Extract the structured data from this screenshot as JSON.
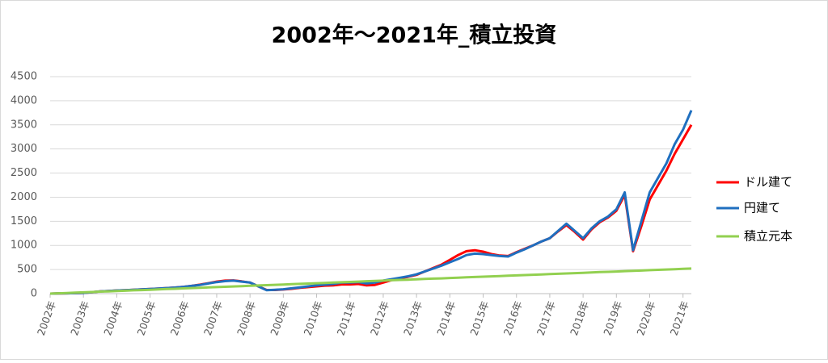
{
  "chart_data": {
    "type": "line",
    "title": "2002年～2021年_積立投資",
    "categories": [
      "2002年",
      null,
      null,
      null,
      "2003年",
      null,
      null,
      null,
      "2004年",
      null,
      null,
      null,
      "2005年",
      null,
      null,
      null,
      "2006年",
      null,
      null,
      null,
      "2007年",
      null,
      null,
      null,
      "2008年",
      null,
      null,
      null,
      "2009年",
      null,
      null,
      null,
      "2010年",
      null,
      null,
      null,
      "2011年",
      null,
      null,
      null,
      "2012年",
      null,
      null,
      null,
      "2013年",
      null,
      null,
      null,
      "2014年",
      null,
      null,
      null,
      "2015年",
      null,
      null,
      null,
      "2016年",
      null,
      null,
      null,
      "2017年",
      null,
      null,
      null,
      "2018年",
      null,
      null,
      null,
      "2019年",
      null,
      null,
      null,
      "2020年",
      null,
      null,
      null,
      "2021年",
      null
    ],
    "series": [
      {
        "name": "ドル建て",
        "color": "#ff0000",
        "values": [
          0,
          3,
          6,
          10,
          15,
          30,
          45,
          55,
          65,
          72,
          80,
          88,
          95,
          105,
          115,
          125,
          140,
          160,
          185,
          215,
          250,
          270,
          275,
          255,
          230,
          150,
          75,
          75,
          85,
          100,
          120,
          135,
          150,
          165,
          170,
          190,
          190,
          200,
          170,
          180,
          230,
          280,
          320,
          350,
          390,
          460,
          530,
          600,
          700,
          800,
          880,
          900,
          870,
          820,
          790,
          780,
          860,
          930,
          1000,
          1080,
          1150,
          1290,
          1420,
          1280,
          1120,
          1330,
          1480,
          1580,
          1720,
          2050,
          880,
          1400,
          1950,
          2250,
          2550,
          2900,
          3200,
          3500
        ]
      },
      {
        "name": "円建て",
        "color": "#1f6fbf",
        "values": [
          0,
          3,
          6,
          10,
          15,
          30,
          45,
          55,
          65,
          72,
          80,
          88,
          95,
          105,
          115,
          125,
          140,
          160,
          180,
          210,
          240,
          260,
          270,
          250,
          230,
          150,
          70,
          80,
          90,
          110,
          130,
          150,
          170,
          185,
          200,
          230,
          230,
          240,
          210,
          230,
          270,
          300,
          330,
          360,
          400,
          460,
          520,
          580,
          650,
          720,
          800,
          830,
          820,
          800,
          780,
          770,
          850,
          920,
          1000,
          1080,
          1150,
          1300,
          1450,
          1300,
          1150,
          1350,
          1500,
          1600,
          1750,
          2100,
          900,
          1500,
          2100,
          2400,
          2700,
          3100,
          3400,
          3800
        ]
      },
      {
        "name": "積立元本",
        "color": "#92d050",
        "values": [
          0,
          7,
          14,
          20,
          27,
          34,
          41,
          47,
          54,
          61,
          68,
          74,
          81,
          88,
          95,
          101,
          108,
          115,
          122,
          128,
          135,
          142,
          149,
          155,
          162,
          169,
          176,
          182,
          189,
          196,
          203,
          209,
          216,
          223,
          230,
          236,
          243,
          250,
          257,
          263,
          270,
          277,
          284,
          290,
          297,
          304,
          311,
          317,
          324,
          331,
          338,
          344,
          351,
          358,
          365,
          371,
          378,
          385,
          392,
          398,
          405,
          412,
          419,
          425,
          432,
          439,
          446,
          452,
          459,
          466,
          473,
          479,
          486,
          493,
          500,
          506,
          513,
          520
        ]
      }
    ],
    "ylim": [
      0,
      4500
    ],
    "yticks": [
      0,
      500,
      1000,
      1500,
      2000,
      2500,
      3000,
      3500,
      4000,
      4500
    ],
    "grid": true,
    "legend": "right"
  }
}
